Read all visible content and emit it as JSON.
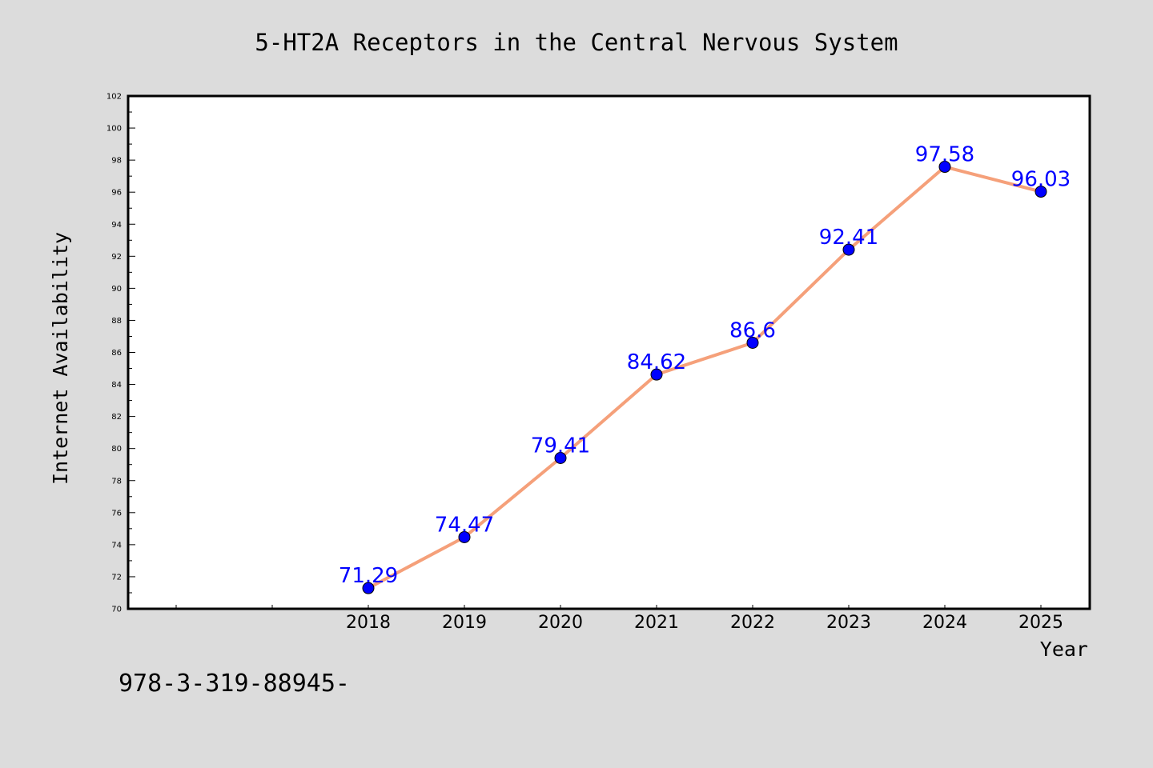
{
  "chart_data": {
    "type": "line",
    "title": "5-HT2A Receptors in the Central Nervous System",
    "xlabel": "Year",
    "ylabel": "Internet Availability",
    "x_ticks": [
      "",
      "",
      "2018",
      "2019",
      "2020",
      "2021",
      "2022",
      "2023",
      "2024",
      "2025"
    ],
    "categories": [
      "2018",
      "2019",
      "2020",
      "2021",
      "2022",
      "2023",
      "2024",
      "2025"
    ],
    "series": [
      {
        "values": [
          71.29,
          74.47,
          79.41,
          84.62,
          86.6,
          92.41,
          97.58,
          96.03
        ],
        "labels": [
          "71.29",
          "74.47",
          "79.41",
          "84.62",
          "86.6",
          "92.41",
          "97.58",
          "96.03"
        ],
        "line_color": "#f5a07a",
        "marker_color": "#0000ff"
      }
    ],
    "ylim": [
      70,
      102
    ],
    "y_major_step": 2,
    "grid": false,
    "legend": "none"
  },
  "note_text": "978-3-319-88945-"
}
